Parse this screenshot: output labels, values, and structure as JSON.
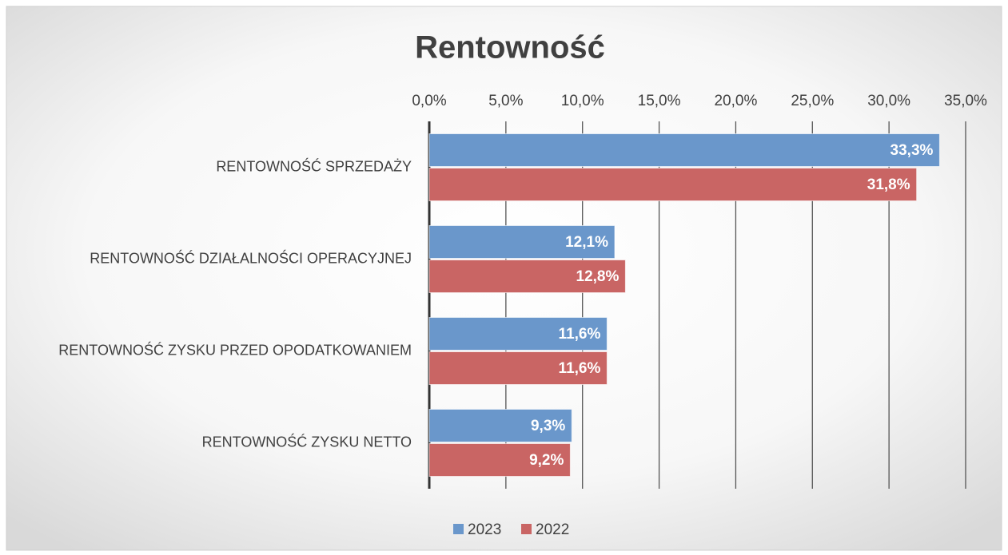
{
  "chart_data": {
    "type": "bar",
    "orientation": "horizontal",
    "title": "Rentowność",
    "categories": [
      "RENTOWNOŚĆ SPRZEDAŻY",
      "RENTOWNOŚĆ DZIAŁALNOŚCI OPERACYJNEJ",
      "RENTOWNOŚĆ ZYSKU PRZED OPODATKOWANIEM",
      "RENTOWNOŚĆ ZYSKU NETTO"
    ],
    "series": [
      {
        "name": "2023",
        "color": "#6a97cb",
        "values": [
          33.3,
          12.1,
          11.6,
          9.3
        ],
        "value_labels": [
          "33,3%",
          "12,1%",
          "11,6%",
          "9,3%"
        ]
      },
      {
        "name": "2022",
        "color": "#c96564",
        "values": [
          31.8,
          12.8,
          11.6,
          9.2
        ],
        "value_labels": [
          "31,8%",
          "12,8%",
          "11,6%",
          "9,2%"
        ]
      }
    ],
    "xlim": [
      0,
      35
    ],
    "xticks": [
      {
        "value": 0,
        "label": "0,0%"
      },
      {
        "value": 5,
        "label": "5,0%"
      },
      {
        "value": 10,
        "label": "10,0%"
      },
      {
        "value": 15,
        "label": "15,0%"
      },
      {
        "value": 20,
        "label": "20,0%"
      },
      {
        "value": 25,
        "label": "25,0%"
      },
      {
        "value": 30,
        "label": "30,0%"
      },
      {
        "value": 35,
        "label": "35,0%"
      }
    ],
    "grid": true,
    "legend": "bottom"
  }
}
